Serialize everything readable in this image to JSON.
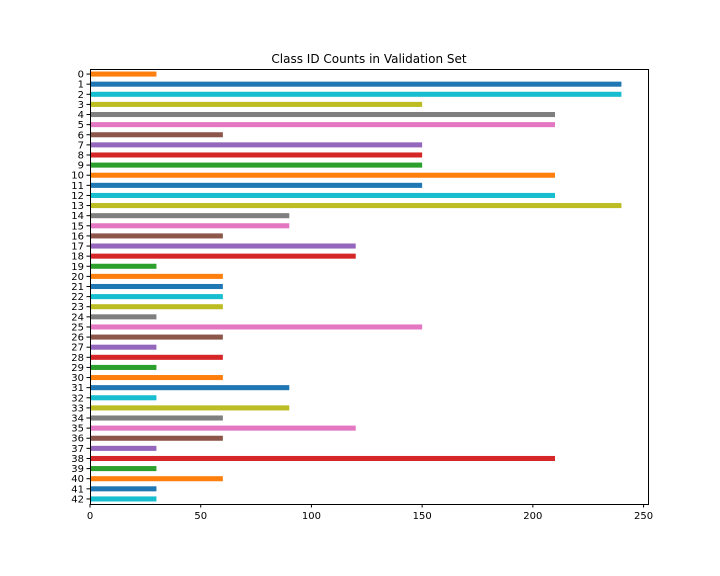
{
  "chart_data": {
    "type": "bar",
    "orientation": "horizontal",
    "title": "Class ID Counts in Validation Set",
    "xlabel": "",
    "ylabel": "",
    "xlim": [
      0,
      252
    ],
    "x_ticks": [
      0,
      50,
      100,
      150,
      200,
      250
    ],
    "grid": false,
    "legend": "none",
    "categories": [
      "0",
      "1",
      "2",
      "3",
      "4",
      "5",
      "6",
      "7",
      "8",
      "9",
      "10",
      "11",
      "12",
      "13",
      "14",
      "15",
      "16",
      "17",
      "18",
      "19",
      "20",
      "21",
      "22",
      "23",
      "24",
      "25",
      "26",
      "27",
      "28",
      "29",
      "30",
      "31",
      "32",
      "33",
      "34",
      "35",
      "36",
      "37",
      "38",
      "39",
      "40",
      "41",
      "42"
    ],
    "values": [
      30,
      240,
      240,
      150,
      210,
      210,
      60,
      150,
      150,
      150,
      210,
      150,
      210,
      240,
      90,
      90,
      60,
      120,
      120,
      30,
      60,
      60,
      60,
      60,
      30,
      150,
      60,
      30,
      60,
      30,
      60,
      90,
      30,
      90,
      60,
      120,
      60,
      30,
      210,
      30,
      60,
      30,
      30
    ],
    "palette": [
      "#17becf",
      "#bcbd22",
      "#7f7f7f",
      "#e377c2",
      "#8c564b",
      "#9467bd",
      "#d62728",
      "#2ca02c",
      "#ff7f0e",
      "#1f77b4"
    ],
    "palette_offset": 8
  }
}
